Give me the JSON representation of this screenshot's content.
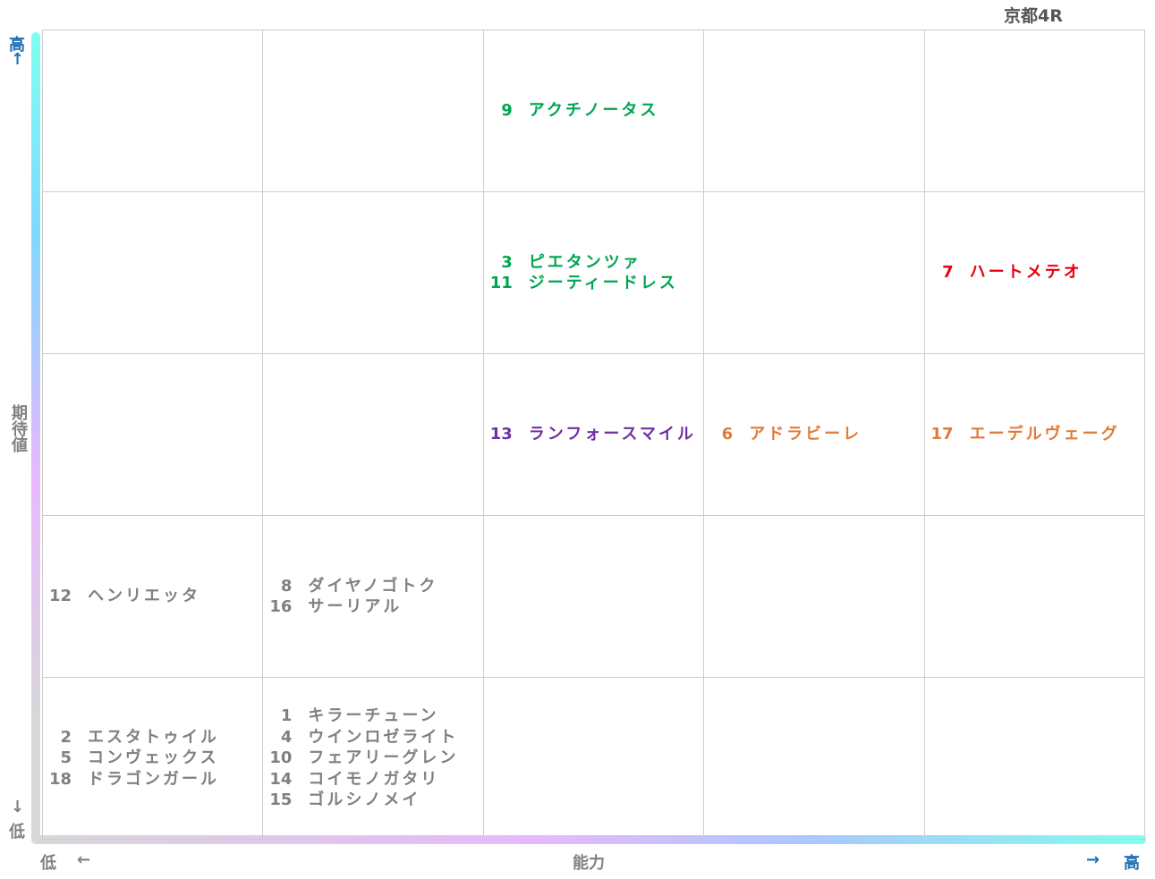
{
  "title": "京都4R",
  "y_axis": {
    "high": "高",
    "up_arrow": "↑",
    "label": "期待値",
    "down_arrow": "↓",
    "low": "低"
  },
  "x_axis": {
    "low": "低",
    "left_arrow": "←",
    "label": "能力",
    "right_arrow": "→",
    "high": "高"
  },
  "grid": [
    [
      null,
      null,
      {
        "color": "#00a550",
        "entries": [
          {
            "number": 9,
            "name": "アクチノータス"
          }
        ]
      },
      null,
      null
    ],
    [
      null,
      null,
      {
        "color": "#00a550",
        "entries": [
          {
            "number": 3,
            "name": "ピエタンツァ"
          },
          {
            "number": 11,
            "name": "ジーティードレス"
          }
        ]
      },
      null,
      {
        "color": "#e60012",
        "entries": [
          {
            "number": 7,
            "name": "ハートメテオ"
          }
        ]
      }
    ],
    [
      null,
      null,
      {
        "color": "#7030a0",
        "entries": [
          {
            "number": 13,
            "name": "ランフォースマイル"
          }
        ]
      },
      {
        "color": "#e07b39",
        "entries": [
          {
            "number": 6,
            "name": "アドラビーレ"
          }
        ]
      },
      {
        "color": "#e07b39",
        "entries": [
          {
            "number": 17,
            "name": "エーデルヴェーグ"
          }
        ]
      }
    ],
    [
      {
        "color": "#808080",
        "entries": [
          {
            "number": 12,
            "name": "ヘンリエッタ"
          }
        ]
      },
      {
        "color": "#808080",
        "entries": [
          {
            "number": 8,
            "name": "ダイヤノゴトク"
          },
          {
            "number": 16,
            "name": "サーリアル"
          }
        ]
      },
      null,
      null,
      null
    ],
    [
      {
        "color": "#808080",
        "entries": [
          {
            "number": 2,
            "name": "エスタトゥイル"
          },
          {
            "number": 5,
            "name": "コンヴェックス"
          },
          {
            "number": 18,
            "name": "ドラゴンガール"
          }
        ]
      },
      {
        "color": "#808080",
        "entries": [
          {
            "number": 1,
            "name": "キラーチューン"
          },
          {
            "number": 4,
            "name": "ウインロゼライト"
          },
          {
            "number": 10,
            "name": "フェアリーグレン"
          },
          {
            "number": 14,
            "name": "コイモノガタリ"
          },
          {
            "number": 15,
            "name": "ゴルシノメイ"
          }
        ]
      },
      null,
      null,
      null
    ]
  ]
}
